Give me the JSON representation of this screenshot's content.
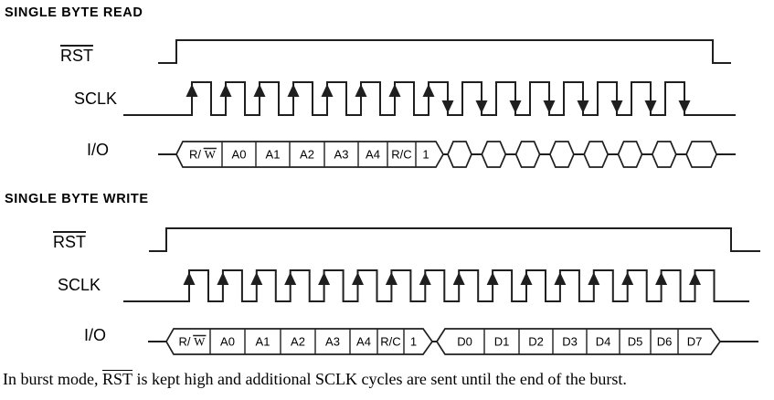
{
  "colors": {
    "line": "#1f1f1f",
    "text": "#000000",
    "background": "#ffffff"
  },
  "sections": [
    {
      "id": "read",
      "title": "SINGLE BYTE READ",
      "signals": [
        {
          "name": "RST",
          "overline": true
        },
        {
          "name": "SCLK",
          "overline": false
        },
        {
          "name": "I/O",
          "overline": false
        }
      ],
      "sclk": {
        "pulse_count": 15,
        "rising_edge_arrows": [
          0,
          1,
          2,
          3,
          4,
          5,
          6,
          7
        ],
        "falling_edge_arrows": [
          7,
          8,
          9,
          10,
          11,
          12,
          13,
          14
        ]
      },
      "io": {
        "command_cells": [
          {
            "pre": "R/ ",
            "over": "W"
          },
          {
            "pre": "A0"
          },
          {
            "pre": "A1"
          },
          {
            "pre": "A2"
          },
          {
            "pre": "A3"
          },
          {
            "pre": "A4"
          },
          {
            "pre": "R/C"
          },
          {
            "pre": "1"
          }
        ],
        "data_phase": "high-impedance-hexagons",
        "hexagon_count": 8
      }
    },
    {
      "id": "write",
      "title": "SINGLE BYTE WRITE",
      "signals": [
        {
          "name": "RST",
          "overline": true
        },
        {
          "name": "SCLK",
          "overline": false
        },
        {
          "name": "I/O",
          "overline": false
        }
      ],
      "sclk": {
        "pulse_count": 16,
        "rising_edge_arrows": [
          0,
          1,
          2,
          3,
          4,
          5,
          6,
          7,
          8,
          9,
          10,
          11,
          12,
          13,
          14,
          15
        ],
        "falling_edge_arrows": []
      },
      "io": {
        "command_cells": [
          {
            "pre": "R/ ",
            "over": "W"
          },
          {
            "pre": "A0"
          },
          {
            "pre": "A1"
          },
          {
            "pre": "A2"
          },
          {
            "pre": "A3"
          },
          {
            "pre": "A4"
          },
          {
            "pre": "R/C"
          },
          {
            "pre": "1"
          }
        ],
        "data_cells": [
          {
            "pre": "D0"
          },
          {
            "pre": "D1"
          },
          {
            "pre": "D2"
          },
          {
            "pre": "D3"
          },
          {
            "pre": "D4"
          },
          {
            "pre": "D5"
          },
          {
            "pre": "D6"
          },
          {
            "pre": "D7"
          }
        ]
      }
    }
  ],
  "caption": {
    "pre": "In burst mode, ",
    "overlined": "RST",
    "post": " is kept high and additional SCLK cycles are sent until the end of the burst."
  }
}
